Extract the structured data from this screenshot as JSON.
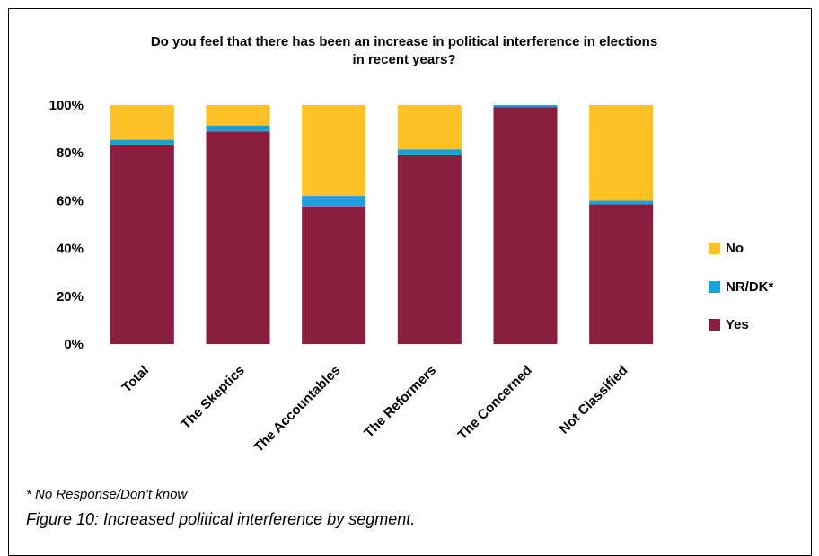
{
  "chart_data": {
    "type": "bar",
    "stacked": true,
    "title_lines": [
      "Do you feel that there has been an increase in political interference in elections",
      "in recent years?"
    ],
    "categories": [
      "Total",
      "The Skeptics",
      "The Accountables",
      "The Reformers",
      "The Concerned",
      "Not Classified"
    ],
    "series": [
      {
        "name": "Yes",
        "color": "#8B1E3F",
        "values": [
          83.5,
          89,
          57.5,
          79,
          99.2,
          58.5
        ]
      },
      {
        "name": "NR/DK*",
        "color": "#1BA1D9",
        "values": [
          2,
          2.5,
          4.5,
          2.5,
          0.8,
          1.5
        ]
      },
      {
        "name": "No",
        "color": "#FFC125",
        "values": [
          14.5,
          8.5,
          38,
          18.5,
          0,
          40
        ]
      }
    ],
    "legend_order": [
      "No",
      "NR/DK*",
      "Yes"
    ],
    "yticks": [
      "0%",
      "20%",
      "40%",
      "60%",
      "80%",
      "100%"
    ],
    "ylim": [
      0,
      100
    ],
    "grid": false,
    "legend_position": "right"
  },
  "footnote": "* No Response/Don’t know",
  "caption": "Figure 10: Increased political interference by segment."
}
